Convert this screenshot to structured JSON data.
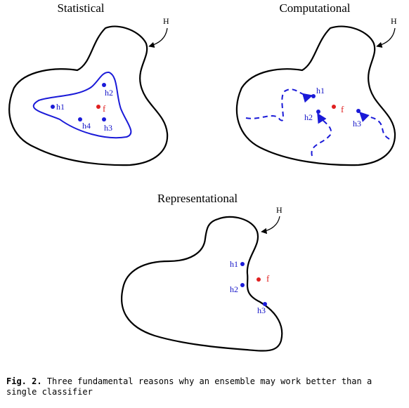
{
  "panels": {
    "statistical": {
      "title": "Statistical",
      "space_label": "H",
      "hypotheses": [
        "h1",
        "h2",
        "h3",
        "h4"
      ],
      "target_label": "f"
    },
    "computational": {
      "title": "Computational",
      "space_label": "H",
      "hypotheses": [
        "h1",
        "h2",
        "h3"
      ],
      "target_label": "f"
    },
    "representational": {
      "title": "Representational",
      "space_label": "H",
      "hypotheses": [
        "h1",
        "h2",
        "h3"
      ],
      "target_label": "f"
    }
  },
  "caption": {
    "label": "Fig. 2.",
    "text": "Three fundamental reasons why an ensemble may work better than a single classifier"
  },
  "colors": {
    "hypothesis": "#1a1ad8",
    "target": "#e02020",
    "outline": "#000000"
  }
}
